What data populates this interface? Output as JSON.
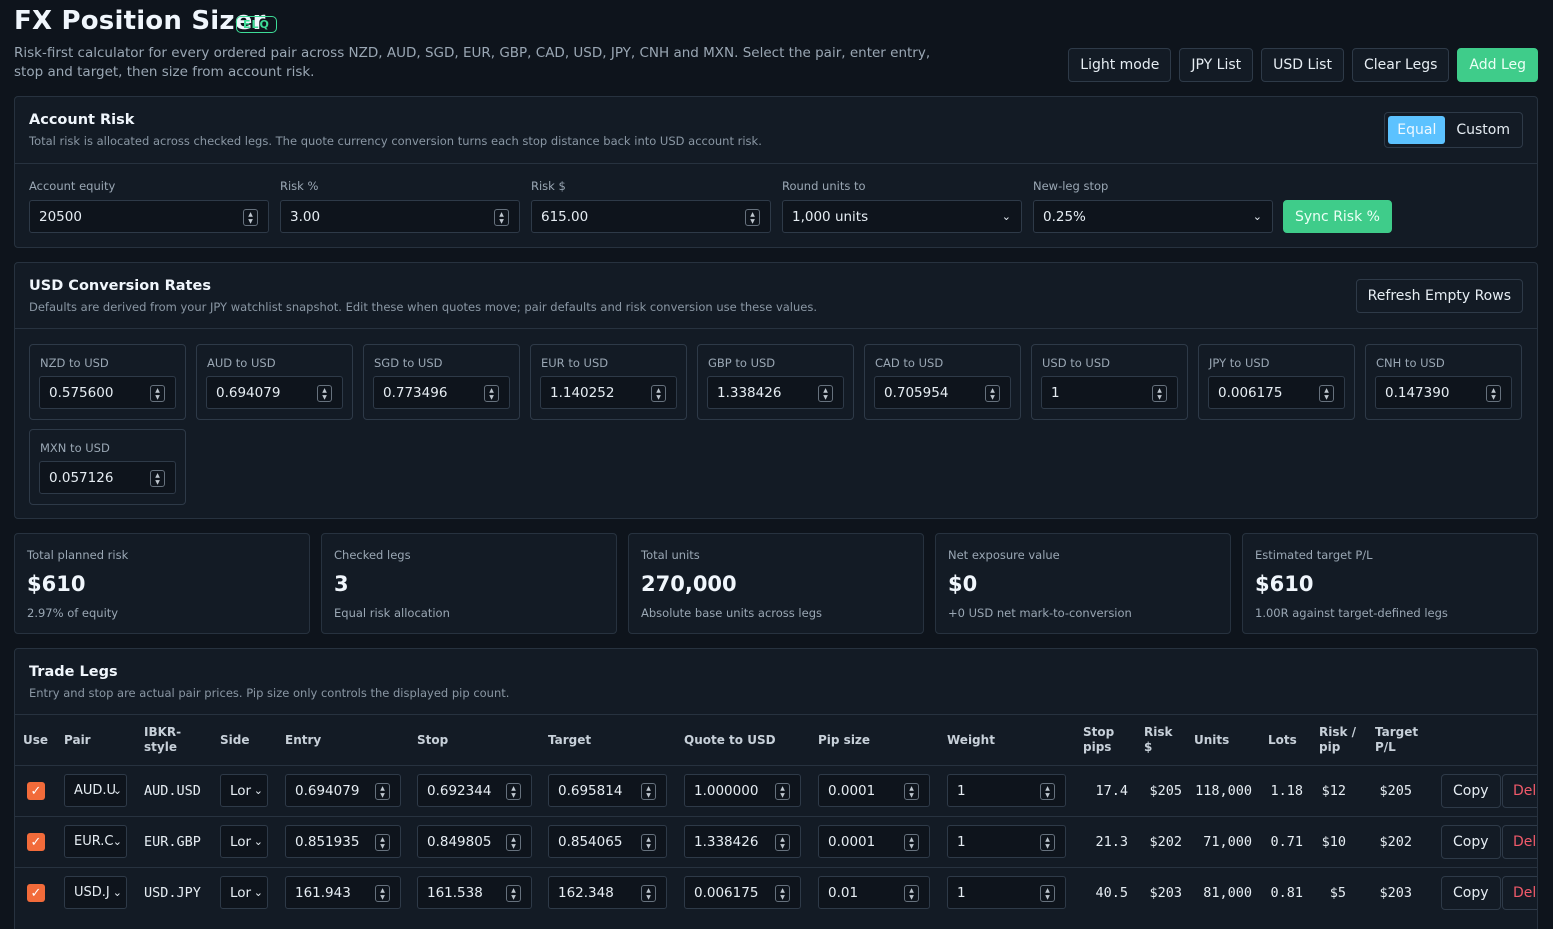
{
  "header": {
    "title": "FX Position Sizer",
    "badge": "ELQ",
    "subtitle": "Risk-first calculator for every ordered pair across NZD, AUD, SGD, EUR, GBP, CAD, USD, JPY, CNH and MXN. Select the pair, enter entry, stop and target, then size from account risk.",
    "buttons": {
      "light_mode": "Light mode",
      "jpy_list": "JPY List",
      "usd_list": "USD List",
      "clear_legs": "Clear Legs",
      "add_leg": "Add Leg"
    }
  },
  "account_risk": {
    "title": "Account Risk",
    "description": "Total risk is allocated across checked legs. The quote currency conversion turns each stop distance back into USD account risk.",
    "allocation": {
      "equal": "Equal",
      "custom": "Custom",
      "selected": "Equal"
    },
    "fields": {
      "equity": {
        "label": "Account equity",
        "value": "20500"
      },
      "risk_pct": {
        "label": "Risk %",
        "value": "3.00"
      },
      "risk_usd": {
        "label": "Risk $",
        "value": "615.00"
      },
      "round_units": {
        "label": "Round units to",
        "value": "1,000 units"
      },
      "new_leg_stop": {
        "label": "New-leg stop",
        "value": "0.25%"
      }
    },
    "sync_button": "Sync Risk %"
  },
  "conversion": {
    "title": "USD Conversion Rates",
    "description": "Defaults are derived from your JPY watchlist snapshot. Edit these when quotes move; pair defaults and risk conversion use these values.",
    "refresh_button": "Refresh Empty Rows",
    "rates": [
      {
        "label": "NZD to USD",
        "value": "0.575600"
      },
      {
        "label": "AUD to USD",
        "value": "0.694079"
      },
      {
        "label": "SGD to USD",
        "value": "0.773496"
      },
      {
        "label": "EUR to USD",
        "value": "1.140252"
      },
      {
        "label": "GBP to USD",
        "value": "1.338426"
      },
      {
        "label": "CAD to USD",
        "value": "0.705954"
      },
      {
        "label": "USD to USD",
        "value": "1"
      },
      {
        "label": "JPY to USD",
        "value": "0.006175"
      },
      {
        "label": "CNH to USD",
        "value": "0.147390"
      },
      {
        "label": "MXN to USD",
        "value": "0.057126"
      }
    ]
  },
  "stats": [
    {
      "label": "Total planned risk",
      "value": "$610",
      "sub": "2.97% of equity"
    },
    {
      "label": "Checked legs",
      "value": "3",
      "sub": "Equal risk allocation"
    },
    {
      "label": "Total units",
      "value": "270,000",
      "sub": "Absolute base units across legs"
    },
    {
      "label": "Net exposure value",
      "value": "$0",
      "sub": "+0 USD net mark-to-conversion"
    },
    {
      "label": "Estimated target P/L",
      "value": "$610",
      "sub": "1.00R against target-defined legs"
    }
  ],
  "trade_legs": {
    "title": "Trade Legs",
    "description": "Entry and stop are actual pair prices. Pip size only controls the displayed pip count.",
    "columns": {
      "use": "Use",
      "pair": "Pair",
      "ibkr_1": "IBKR-",
      "ibkr_2": "style",
      "side": "Side",
      "entry": "Entry",
      "stop": "Stop",
      "target": "Target",
      "quote_usd": "Quote to USD",
      "pip_size": "Pip size",
      "weight": "Weight",
      "stop_pips_1": "Stop",
      "stop_pips_2": "pips",
      "risk_1": "Risk",
      "risk_2": "$",
      "units": "Units",
      "lots": "Lots",
      "risk_pip_1": "Risk /",
      "risk_pip_2": "pip",
      "target_pl_1": "Target",
      "target_pl_2": "P/L"
    },
    "rows": [
      {
        "checked": "✓",
        "pair": "AUD.U",
        "ibkr": "AUD.USD",
        "side": "Lor",
        "entry": "0.694079",
        "stop": "0.692344",
        "target": "0.695814",
        "quote": "1.000000",
        "pip": "0.0001",
        "weight": "1",
        "stop_pips": "17.4",
        "risk": "$205",
        "units": "118,000",
        "lots": "1.18",
        "risk_pip": "$12",
        "target_pl": "$205",
        "copy": "Copy",
        "del": "Del"
      },
      {
        "checked": "✓",
        "pair": "EUR.C",
        "ibkr": "EUR.GBP",
        "side": "Lor",
        "entry": "0.851935",
        "stop": "0.849805",
        "target": "0.854065",
        "quote": "1.338426",
        "pip": "0.0001",
        "weight": "1",
        "stop_pips": "21.3",
        "risk": "$202",
        "units": "71,000",
        "lots": "0.71",
        "risk_pip": "$10",
        "target_pl": "$202",
        "copy": "Copy",
        "del": "Del"
      },
      {
        "checked": "✓",
        "pair": "USD.J",
        "ibkr": "USD.JPY",
        "side": "Lor",
        "entry": "161.943",
        "stop": "161.538",
        "target": "162.348",
        "quote": "0.006175",
        "pip": "0.01",
        "weight": "1",
        "stop_pips": "40.5",
        "risk": "$203",
        "units": "81,000",
        "lots": "0.81",
        "risk_pip": "$5",
        "target_pl": "$203",
        "copy": "Copy",
        "del": "Del"
      }
    ]
  }
}
